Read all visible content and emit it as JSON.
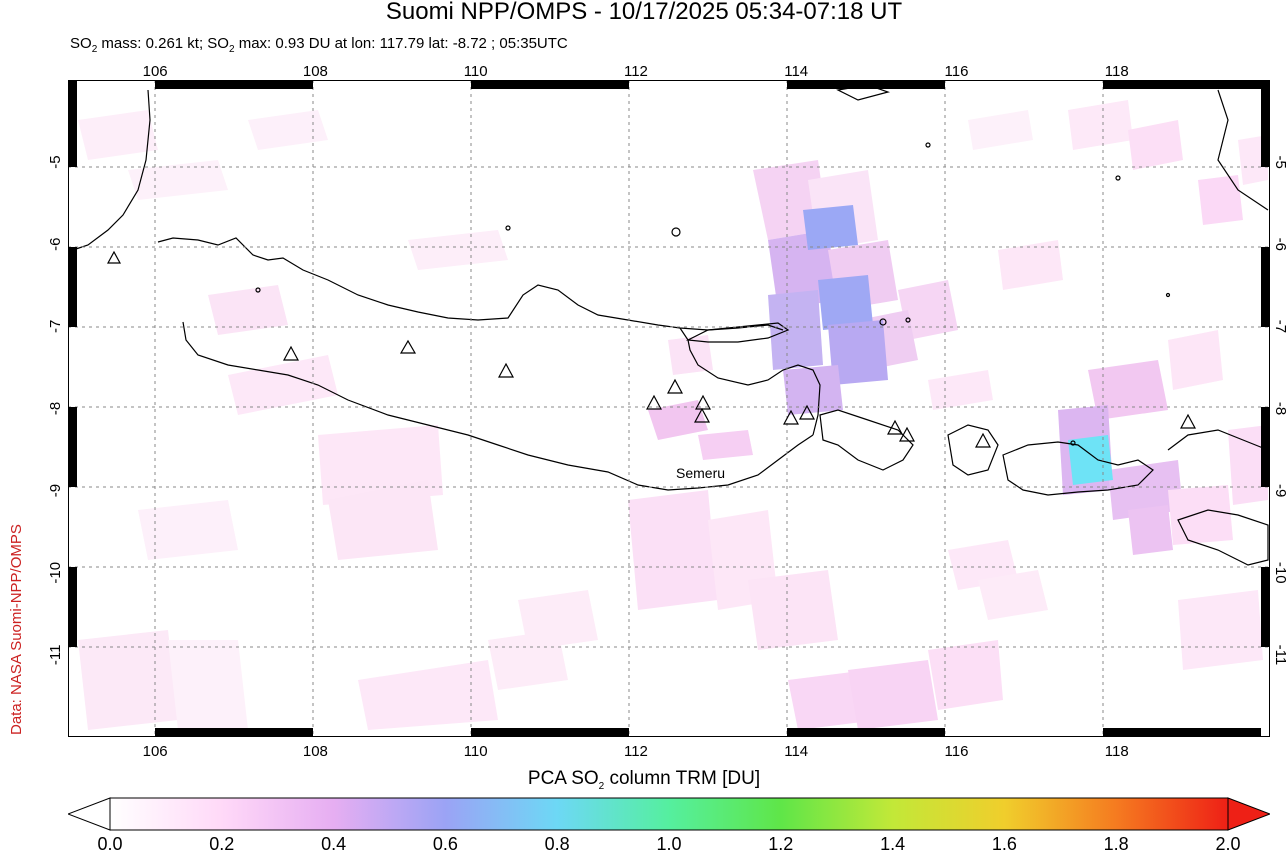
{
  "title": "Suomi NPP/OMPS - 10/17/2025 05:34-07:18 UT",
  "subtitle": {
    "pre": "SO",
    "sub": "2",
    "mid": " mass: 0.261 kt; SO",
    "sub2": "2",
    "post": " max: 0.93 DU at lon: 117.79 lat: -8.72 ; 05:35UTC"
  },
  "credit": "Data: NASA Suomi-NPP/OMPS",
  "map": {
    "lon_range": [
      105,
      120
    ],
    "lat_range": [
      -12,
      -4
    ],
    "lon_ticks": [
      "106",
      "108",
      "110",
      "112",
      "114",
      "116",
      "118"
    ],
    "lat_ticks": [
      "-5",
      "-6",
      "-7",
      "-8",
      "-9",
      "-10",
      "-11"
    ],
    "volcano_label": "Semeru",
    "colors": {
      "coast": "#000000",
      "grid": "#888888",
      "frame": "#000000"
    }
  },
  "colorbar": {
    "title_pre": "PCA SO",
    "title_sub": "2",
    "title_post": " column TRM [DU]",
    "ticks": [
      "0.0",
      "0.2",
      "0.4",
      "0.6",
      "0.8",
      "1.0",
      "1.2",
      "1.4",
      "1.6",
      "1.8",
      "2.0"
    ],
    "colors": [
      "#ffffff",
      "#ffd9f8",
      "#e6aef2",
      "#9ba3f5",
      "#6dd8f5",
      "#55ef9f",
      "#5fe648",
      "#c2e838",
      "#f0ce2c",
      "#f57b20",
      "#ee2016"
    ]
  }
}
